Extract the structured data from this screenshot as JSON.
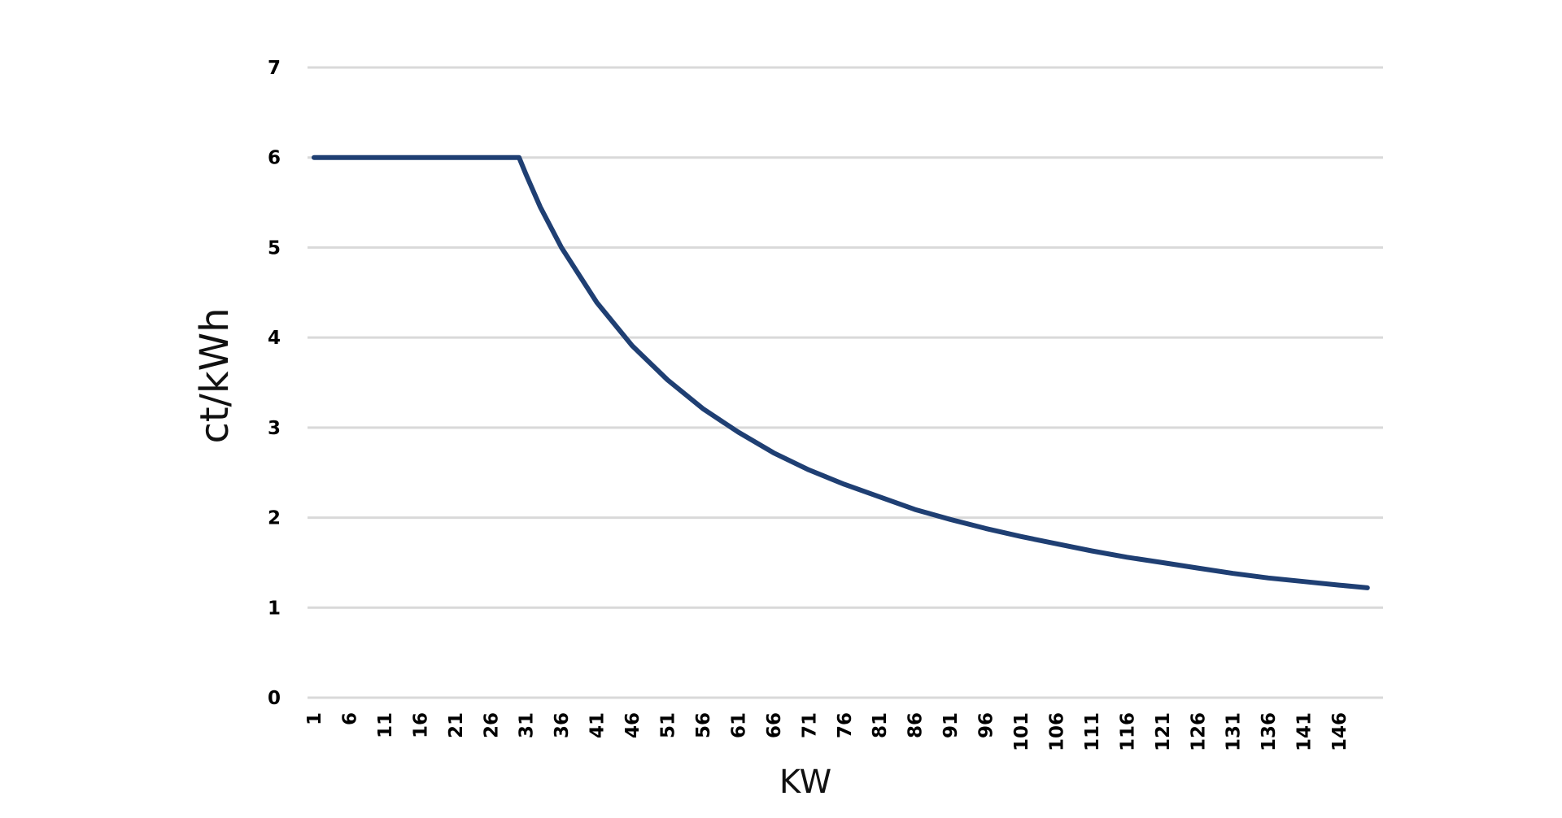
{
  "colors": {
    "series_line": "#1f3f73",
    "gridline": "#d9d9d9",
    "text": "#000000",
    "background": "#ffffff"
  },
  "chart_data": {
    "type": "line",
    "title": "",
    "xlabel": "KW",
    "ylabel": "ct/kWh",
    "ylim": [
      0,
      7
    ],
    "yticks": [
      0,
      1,
      2,
      3,
      4,
      5,
      6,
      7
    ],
    "xtick_labels": [
      "1",
      "6",
      "11",
      "16",
      "21",
      "26",
      "31",
      "36",
      "41",
      "46",
      "51",
      "56",
      "61",
      "66",
      "71",
      "76",
      "81",
      "86",
      "91",
      "96",
      "101",
      "106",
      "111",
      "116",
      "121",
      "126",
      "131",
      "136",
      "141",
      "146"
    ],
    "xlim": [
      1,
      151
    ],
    "grid": true,
    "legend": "none",
    "series": [
      {
        "x": [
          1,
          6,
          11,
          16,
          21,
          26,
          30,
          31,
          33,
          36,
          41,
          46,
          51,
          56,
          61,
          66,
          71,
          76,
          81,
          86,
          91,
          96,
          101,
          106,
          111,
          116,
          121,
          126,
          131,
          136,
          141,
          146,
          150
        ],
        "values": [
          6,
          6,
          6,
          6,
          6,
          6,
          6,
          5.81,
          5.45,
          5.0,
          4.39,
          3.91,
          3.53,
          3.21,
          2.95,
          2.72,
          2.53,
          2.37,
          2.23,
          2.09,
          1.98,
          1.88,
          1.79,
          1.71,
          1.63,
          1.56,
          1.5,
          1.44,
          1.38,
          1.33,
          1.29,
          1.25,
          1.22
        ]
      }
    ]
  }
}
